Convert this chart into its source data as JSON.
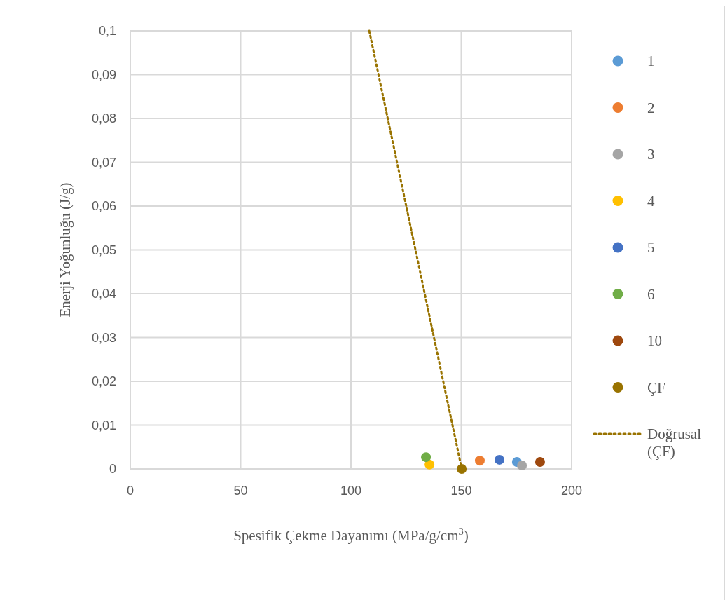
{
  "chart_data": {
    "type": "scatter",
    "xlabel": "Spesifik Çekme Dayanımı (MPa/g/cm$^{3}$)",
    "ylabel": "Enerji Yoğunluğu (J/g)",
    "xlim": [
      0,
      200
    ],
    "xticks": [
      0,
      50,
      100,
      150,
      200
    ],
    "ylim": [
      0,
      0.1
    ],
    "yticks": [
      {
        "value": 0,
        "label": "0"
      },
      {
        "value": 0.01,
        "label": "0,01"
      },
      {
        "value": 0.02,
        "label": "0,02"
      },
      {
        "value": 0.03,
        "label": "0,03"
      },
      {
        "value": 0.04,
        "label": "0,04"
      },
      {
        "value": 0.05,
        "label": "0,05"
      },
      {
        "value": 0.06,
        "label": "0,06"
      },
      {
        "value": 0.07,
        "label": "0,07"
      },
      {
        "value": 0.08,
        "label": "0,08"
      },
      {
        "value": 0.09,
        "label": "0,09"
      },
      {
        "value": 0.1,
        "label": "0,1"
      }
    ],
    "grid": true,
    "legend": "right",
    "marker": "circle",
    "series": [
      {
        "name": "1",
        "color": "#5b9bd5",
        "x": [
          175.2
        ],
        "values": [
          0.0016
        ]
      },
      {
        "name": "2",
        "color": "#ed7d31",
        "x": [
          158.4
        ],
        "values": [
          0.0019
        ]
      },
      {
        "name": "3",
        "color": "#a5a5a5",
        "x": [
          177.5
        ],
        "values": [
          0.0008
        ]
      },
      {
        "name": "4",
        "color": "#ffc000",
        "x": [
          135.6
        ],
        "values": [
          0.001
        ]
      },
      {
        "name": "5",
        "color": "#4472c4",
        "x": [
          167.3
        ],
        "values": [
          0.0021
        ]
      },
      {
        "name": "6",
        "color": "#70ad47",
        "x": [
          134.0
        ],
        "values": [
          0.0027
        ]
      },
      {
        "name": "10",
        "color": "#9e480e",
        "x": [
          185.7
        ],
        "values": [
          0.0016
        ]
      },
      {
        "name": "ÇF",
        "color": "#997300",
        "x": [
          150.2
        ],
        "values": [
          0
        ]
      },
      {
        "name": "Doğrusal (ÇF)",
        "type": "line",
        "line_style": "dotted",
        "marker": "none",
        "color": "#997300",
        "x": [
          108.3,
          150.2
        ],
        "values": [
          0.1,
          0
        ]
      }
    ]
  }
}
